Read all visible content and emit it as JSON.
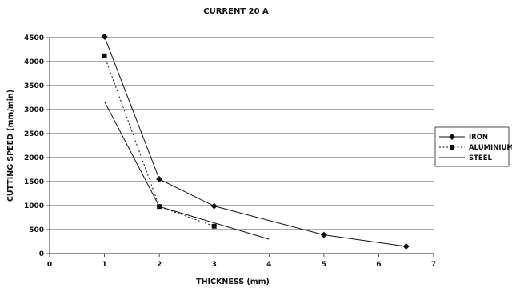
{
  "chart_data": {
    "type": "line",
    "title": "CURRENT 20 A",
    "xlabel": "THICKNESS (mm)",
    "ylabel": "CUTTING SPEED (mm/min)",
    "xlim": [
      0,
      7
    ],
    "ylim": [
      0,
      4500
    ],
    "xticks": [
      0,
      1,
      2,
      3,
      4,
      5,
      6,
      7
    ],
    "yticks": [
      0,
      500,
      1000,
      1500,
      2000,
      2500,
      3000,
      3500,
      4000,
      4500
    ],
    "grid": "horizontal",
    "legend_position": "right",
    "series": [
      {
        "name": "IRON",
        "marker": "diamond",
        "line": "solid",
        "x": [
          1,
          2,
          3,
          5,
          6.5
        ],
        "y": [
          4520,
          1550,
          990,
          390,
          150
        ]
      },
      {
        "name": "ALUMINIUM",
        "marker": "square",
        "line": "dotted",
        "x": [
          1,
          2,
          3
        ],
        "y": [
          4120,
          980,
          570
        ]
      },
      {
        "name": "STEEL",
        "marker": "none",
        "line": "solid",
        "x": [
          1,
          2,
          4
        ],
        "y": [
          3170,
          980,
          300
        ]
      }
    ]
  }
}
